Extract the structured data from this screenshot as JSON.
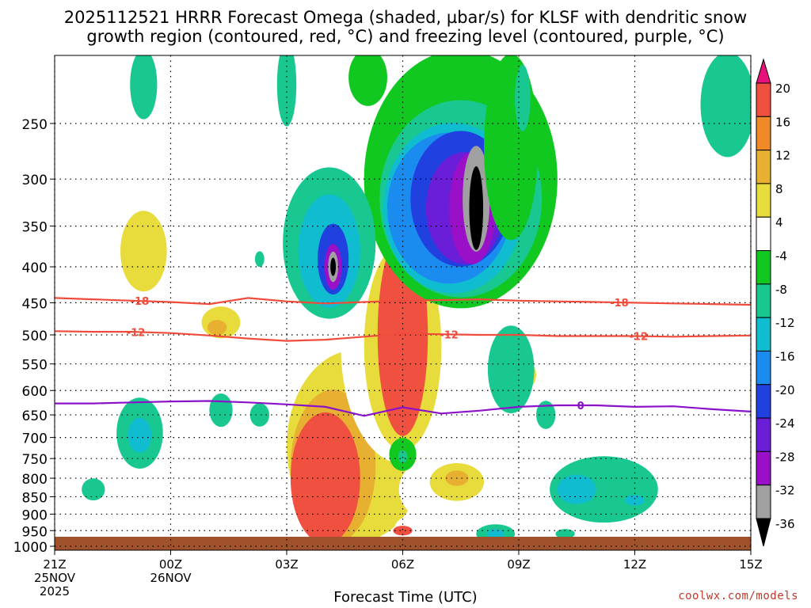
{
  "title_line1": "2025112521 HRRR Forecast Omega (shaded, µbar/s) for KLSF with dendritic snow",
  "title_line2": "growth region (contoured, red, °C) and freezing level (contoured, purple, °C)",
  "credit": "coolwx.com/models",
  "colors": {
    "ground": "#a0522d",
    "dgz_contour": "#f04c3c",
    "freezing_contour": "#8a12c8"
  },
  "chart_data": {
    "type": "heatmap",
    "title": "2025112521 HRRR Forecast Omega (shaded, µbar/s) for KLSF with dendritic snow growth region (contoured, red, °C) and freezing level (contoured, purple, °C)",
    "xlabel": "Forecast Time (UTC)",
    "ylabel": "",
    "x_ticks": [
      {
        "hour": 0,
        "lines": [
          "21Z",
          "25NOV",
          "2025"
        ]
      },
      {
        "hour": 3,
        "lines": [
          "00Z",
          "26NOV"
        ]
      },
      {
        "hour": 6,
        "lines": [
          "03Z"
        ]
      },
      {
        "hour": 9,
        "lines": [
          "06Z"
        ]
      },
      {
        "hour": 12,
        "lines": [
          "09Z"
        ]
      },
      {
        "hour": 15,
        "lines": [
          "12Z"
        ]
      },
      {
        "hour": 18,
        "lines": [
          "15Z"
        ]
      }
    ],
    "xlim": [
      0,
      18
    ],
    "y_ticks": [
      250,
      300,
      350,
      400,
      450,
      500,
      550,
      600,
      650,
      700,
      750,
      800,
      850,
      900,
      950,
      1000
    ],
    "ylim": [
      200,
      1013
    ],
    "y_scale": "log-pressure",
    "grid": true,
    "colorbar": {
      "levels": [
        -36,
        -32,
        -28,
        -24,
        -20,
        -16,
        -12,
        -8,
        -4,
        4,
        8,
        12,
        16,
        20
      ],
      "colors": [
        "#000000",
        "#a0a0a0",
        "#9a10c8",
        "#6a1ed8",
        "#2040e0",
        "#1a8cf0",
        "#10bcd0",
        "#18c890",
        "#10c820",
        "#ffffff",
        "#e8dc3c",
        "#e8b030",
        "#f08a28",
        "#f05040",
        "#e8107a"
      ]
    },
    "contours": [
      {
        "kind": "dendritic snow growth",
        "value": -18,
        "label": "-18",
        "points": [
          [
            0,
            443
          ],
          [
            1,
            445
          ],
          [
            2,
            447
          ],
          [
            3,
            449
          ],
          [
            4,
            452
          ],
          [
            5,
            443
          ],
          [
            6,
            448
          ],
          [
            7,
            451
          ],
          [
            8,
            449
          ],
          [
            9,
            447
          ],
          [
            10,
            446
          ],
          [
            11,
            445
          ],
          [
            12,
            447
          ],
          [
            13,
            448
          ],
          [
            14,
            449
          ],
          [
            15,
            450
          ],
          [
            16,
            451
          ],
          [
            17,
            452
          ],
          [
            18,
            453
          ]
        ],
        "label_hours": [
          2.2,
          14.6
        ]
      },
      {
        "kind": "dendritic snow growth",
        "value": -12,
        "label": "-12",
        "points": [
          [
            0,
            494
          ],
          [
            1,
            495
          ],
          [
            2,
            495
          ],
          [
            3,
            497
          ],
          [
            4,
            501
          ],
          [
            5,
            506
          ],
          [
            6,
            510
          ],
          [
            7,
            508
          ],
          [
            8,
            503
          ],
          [
            9,
            498
          ],
          [
            10,
            499
          ],
          [
            11,
            500
          ],
          [
            12,
            500
          ],
          [
            13,
            502
          ],
          [
            14,
            502
          ],
          [
            15,
            502
          ],
          [
            16,
            503
          ],
          [
            17,
            502
          ],
          [
            18,
            501
          ]
        ],
        "label_hours": [
          2.1,
          10.2,
          15.1
        ]
      },
      {
        "kind": "freezing level",
        "value": 0,
        "label": "0",
        "points": [
          [
            0,
            626
          ],
          [
            1,
            626
          ],
          [
            2,
            624
          ],
          [
            3,
            622
          ],
          [
            4,
            621
          ],
          [
            5,
            624
          ],
          [
            6,
            628
          ],
          [
            7,
            633
          ],
          [
            8,
            652
          ],
          [
            9,
            634
          ],
          [
            10,
            647
          ],
          [
            11,
            641
          ],
          [
            12,
            633
          ],
          [
            13,
            630
          ],
          [
            14,
            630
          ],
          [
            15,
            633
          ],
          [
            16,
            632
          ],
          [
            17,
            638
          ],
          [
            18,
            643
          ]
        ],
        "label_hours": [
          13.6
        ]
      }
    ],
    "omega_blobs": [
      {
        "v": 4,
        "x": 2.3,
        "p": 420,
        "rx": 1.2,
        "rp": 150
      },
      {
        "v": 8,
        "x": 2.3,
        "p": 380,
        "rx": 0.6,
        "rp": 50
      },
      {
        "v": 4,
        "x": 4.5,
        "p": 480,
        "rx": 1.3,
        "rp": 50
      },
      {
        "v": 8,
        "x": 4.3,
        "p": 480,
        "rx": 0.5,
        "rp": 25
      },
      {
        "v": 12,
        "x": 4.2,
        "p": 488,
        "rx": 0.25,
        "rp": 12
      },
      {
        "v": 4,
        "x": 7.9,
        "p": 680,
        "rx": 3.0,
        "rp": 260
      },
      {
        "v": 8,
        "x": 7.8,
        "p": 720,
        "rx": 1.8,
        "rp": 220
      },
      {
        "v": 12,
        "x": 7.2,
        "p": 770,
        "rx": 1.1,
        "rp": 190
      },
      {
        "v": 20,
        "x": 7.0,
        "p": 800,
        "rx": 0.9,
        "rp": 170
      },
      {
        "v": 4,
        "x": 9.0,
        "p": 520,
        "rx": 1.6,
        "rp": 190
      },
      {
        "v": 8,
        "x": 9.0,
        "p": 520,
        "rx": 1.0,
        "rp": 170
      },
      {
        "v": 20,
        "x": 9.0,
        "p": 500,
        "rx": 0.65,
        "rp": 160
      },
      {
        "v": 4,
        "x": 10.5,
        "p": 830,
        "rx": 1.6,
        "rp": 110
      },
      {
        "v": 8,
        "x": 10.4,
        "p": 810,
        "rx": 0.7,
        "rp": 50
      },
      {
        "v": 12,
        "x": 10.4,
        "p": 800,
        "rx": 0.3,
        "rp": 20
      },
      {
        "v": 4,
        "x": 12.8,
        "p": 470,
        "rx": 0.5,
        "rp": 140
      },
      {
        "v": 8,
        "x": 12.2,
        "p": 570,
        "rx": 0.25,
        "rp": 25
      },
      {
        "v": 4,
        "x": 14.6,
        "p": 470,
        "rx": 0.6,
        "rp": 120
      },
      {
        "v": 4,
        "x": 16.2,
        "p": 560,
        "rx": 1.6,
        "rp": 60
      },
      {
        "v": 4,
        "x": 17.5,
        "p": 610,
        "rx": 0.8,
        "rp": 60
      },
      {
        "v": 4,
        "x": 9.4,
        "p": 940,
        "rx": 0.6,
        "rp": 40
      },
      {
        "v": 20,
        "x": 9.0,
        "p": 950,
        "rx": 0.25,
        "rp": 15
      },
      {
        "v": -4,
        "x": 9.0,
        "p": 740,
        "rx": 0.35,
        "rp": 40
      },
      {
        "v": -8,
        "x": 9.0,
        "p": 745,
        "rx": 0.12,
        "rp": 15
      },
      {
        "v": -4,
        "x": 8.1,
        "p": 215,
        "rx": 0.5,
        "rp": 20
      },
      {
        "v": -4,
        "x": 10.5,
        "p": 300,
        "rx": 2.5,
        "rp": 120
      },
      {
        "v": -8,
        "x": 10.5,
        "p": 320,
        "rx": 2.1,
        "rp": 100
      },
      {
        "v": -12,
        "x": 10.3,
        "p": 330,
        "rx": 1.8,
        "rp": 90
      },
      {
        "v": -16,
        "x": 10.2,
        "p": 330,
        "rx": 1.6,
        "rp": 80
      },
      {
        "v": -20,
        "x": 10.5,
        "p": 320,
        "rx": 1.3,
        "rp": 70
      },
      {
        "v": -24,
        "x": 10.6,
        "p": 330,
        "rx": 1.0,
        "rp": 60
      },
      {
        "v": -28,
        "x": 10.8,
        "p": 330,
        "rx": 0.6,
        "rp": 60
      },
      {
        "v": -32,
        "x": 10.9,
        "p": 320,
        "rx": 0.35,
        "rp": 55
      },
      {
        "v": -36,
        "x": 10.9,
        "p": 330,
        "rx": 0.18,
        "rp": 45
      },
      {
        "v": -4,
        "x": 11.8,
        "p": 270,
        "rx": 0.7,
        "rp": 80
      },
      {
        "v": -8,
        "x": 11.8,
        "p": 560,
        "rx": 0.6,
        "rp": 80
      },
      {
        "v": -8,
        "x": 7.1,
        "p": 370,
        "rx": 1.2,
        "rp": 90
      },
      {
        "v": -12,
        "x": 7.1,
        "p": 380,
        "rx": 0.8,
        "rp": 70
      },
      {
        "v": -20,
        "x": 7.2,
        "p": 390,
        "rx": 0.4,
        "rp": 45
      },
      {
        "v": -28,
        "x": 7.2,
        "p": 400,
        "rx": 0.22,
        "rp": 30
      },
      {
        "v": -32,
        "x": 7.2,
        "p": 400,
        "rx": 0.13,
        "rp": 20
      },
      {
        "v": -36,
        "x": 7.2,
        "p": 400,
        "rx": 0.07,
        "rp": 12
      },
      {
        "v": -8,
        "x": 2.2,
        "p": 690,
        "rx": 0.6,
        "rp": 80
      },
      {
        "v": -12,
        "x": 2.2,
        "p": 695,
        "rx": 0.3,
        "rp": 40
      },
      {
        "v": -8,
        "x": 1.0,
        "p": 830,
        "rx": 0.3,
        "rp": 30
      },
      {
        "v": -8,
        "x": 2.3,
        "p": 220,
        "rx": 0.35,
        "rp": 25
      },
      {
        "v": -8,
        "x": 4.3,
        "p": 640,
        "rx": 0.3,
        "rp": 35
      },
      {
        "v": -8,
        "x": 5.3,
        "p": 390,
        "rx": 0.12,
        "rp": 10
      },
      {
        "v": -8,
        "x": 5.3,
        "p": 650,
        "rx": 0.25,
        "rp": 25
      },
      {
        "v": -8,
        "x": 6.0,
        "p": 220,
        "rx": 0.25,
        "rp": 30
      },
      {
        "v": -8,
        "x": 11.4,
        "p": 960,
        "rx": 0.5,
        "rp": 30
      },
      {
        "v": -12,
        "x": 11.4,
        "p": 960,
        "rx": 0.22,
        "rp": 15
      },
      {
        "v": -8,
        "x": 14.2,
        "p": 830,
        "rx": 1.4,
        "rp": 90
      },
      {
        "v": -12,
        "x": 13.5,
        "p": 830,
        "rx": 0.5,
        "rp": 40
      },
      {
        "v": -12,
        "x": 15.0,
        "p": 860,
        "rx": 0.25,
        "rp": 15
      },
      {
        "v": -8,
        "x": 12.7,
        "p": 650,
        "rx": 0.25,
        "rp": 30
      },
      {
        "v": -8,
        "x": 13.2,
        "p": 960,
        "rx": 0.25,
        "rp": 15
      },
      {
        "v": -8,
        "x": 17.4,
        "p": 235,
        "rx": 0.7,
        "rp": 40
      },
      {
        "v": -8,
        "x": 12.1,
        "p": 230,
        "rx": 0.2,
        "rp": 25
      }
    ]
  }
}
